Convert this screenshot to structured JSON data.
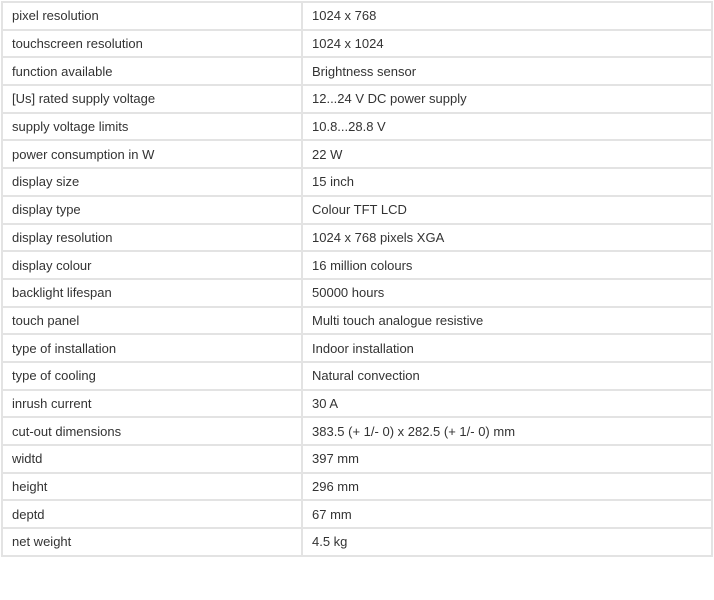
{
  "specs": [
    {
      "label": "pixel resolution",
      "value": "1024 x 768"
    },
    {
      "label": "touchscreen resolution",
      "value": "1024 x 1024"
    },
    {
      "label": "function available",
      "value": "Brightness sensor"
    },
    {
      "label": "[Us] rated supply voltage",
      "value": "12...24 V DC power supply"
    },
    {
      "label": "supply voltage limits",
      "value": "10.8...28.8 V"
    },
    {
      "label": "power consumption in W",
      "value": "22 W"
    },
    {
      "label": "display size",
      "value": "15 inch"
    },
    {
      "label": "display type",
      "value": "Colour TFT LCD"
    },
    {
      "label": "display resolution",
      "value": "1024 x 768 pixels XGA"
    },
    {
      "label": "display colour",
      "value": "16 million colours"
    },
    {
      "label": "backlight lifespan",
      "value": "50000 hours"
    },
    {
      "label": "touch panel",
      "value": "Multi touch analogue resistive"
    },
    {
      "label": "type of installation",
      "value": "Indoor installation"
    },
    {
      "label": "type of cooling",
      "value": "Natural convection"
    },
    {
      "label": "inrush current",
      "value": "30 A"
    },
    {
      "label": "cut-out dimensions",
      "value": "383.5 (+ 1/- 0) x 282.5 (+ 1/- 0) mm"
    },
    {
      "label": "widtd",
      "value": "397 mm"
    },
    {
      "label": "height",
      "value": "296 mm"
    },
    {
      "label": "deptd",
      "value": "67 mm"
    },
    {
      "label": "net weight",
      "value": "4.5 kg"
    }
  ]
}
